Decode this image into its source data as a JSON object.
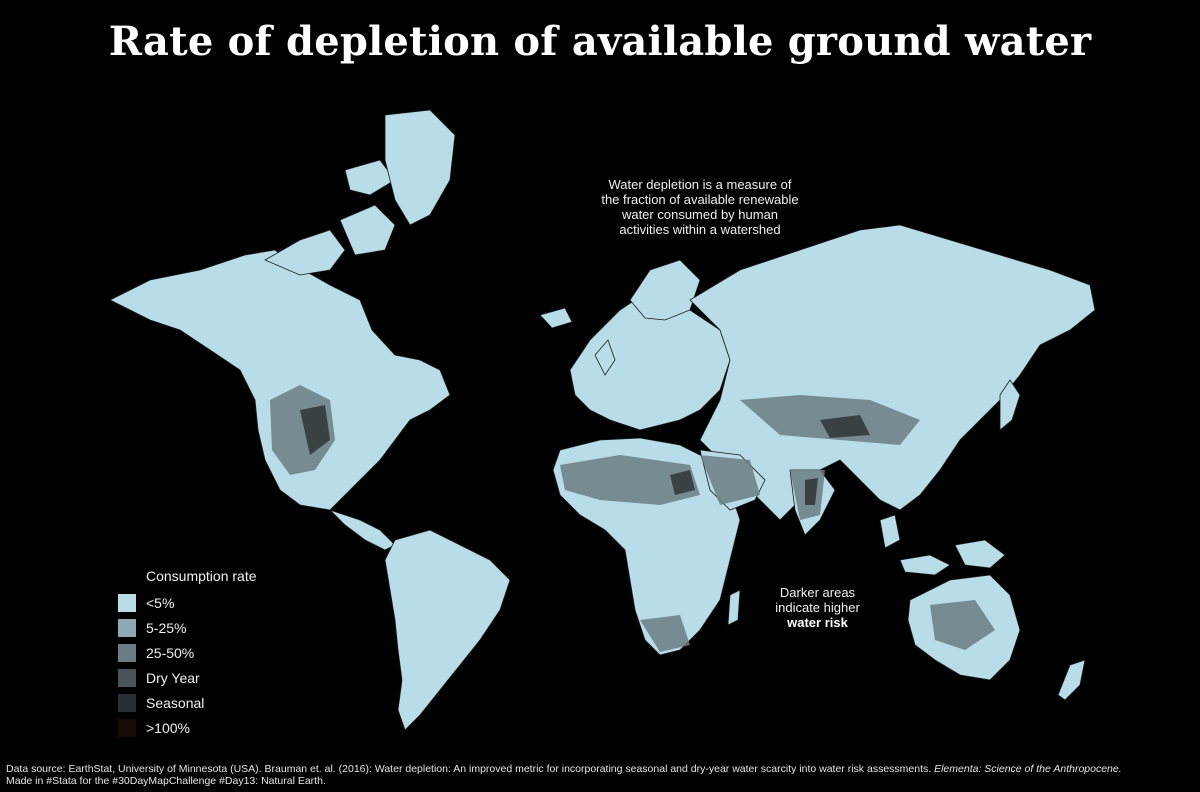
{
  "title": "Rate of depletion of available ground water",
  "annotation": {
    "lines": [
      "Water depletion is a measure of",
      "the fraction of available renewable",
      "water consumed by human",
      "activities within a watershed"
    ]
  },
  "risk_note": {
    "line1": "Darker areas",
    "line2": "indicate higher",
    "line3": "water risk"
  },
  "legend": {
    "title": "Consumption rate",
    "items": [
      {
        "label": "<5%",
        "color": "#b8dde8"
      },
      {
        "label": "5-25%",
        "color": "#8ea9b3"
      },
      {
        "label": "25-50%",
        "color": "#6b7d84"
      },
      {
        "label": "Dry Year",
        "color": "#4a5357"
      },
      {
        "label": "Seasonal",
        "color": "#2b2f31"
      },
      {
        "label": ">100%",
        "color": "#1a0a0a"
      }
    ]
  },
  "colors": {
    "background": "#000000",
    "land": "#b8dde8",
    "borders": "#1a1a1a"
  },
  "footer": {
    "line1_text": "Data source: EarthStat, University of Minnesota (USA). Brauman et. al. (2016): Water depletion: An improved metric for incorporating seasonal and dry-year water scarcity into water risk assessments. ",
    "line1_journal": "Elementa: Science of the Anthropocene.",
    "line2": "Made in #Stata for the #30DayMapChallenge #Day13: Natural Earth."
  }
}
